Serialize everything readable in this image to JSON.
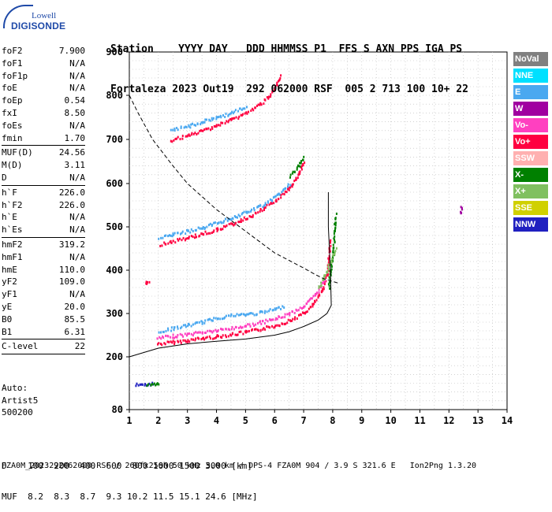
{
  "header": {
    "line1": "Station    YYYY DAY   DDD HHMMSS P1  FFS S AXN PPS IGA PS",
    "line2": "Fortaleza 2023 Out19  292 062000 RSF  005 2 713 100 10+ 22"
  },
  "logo": {
    "line1": "Lowell",
    "line2": "DIGISONDE"
  },
  "params": {
    "group1": [
      {
        "name": "foF2",
        "value": "7.900"
      },
      {
        "name": "foF1",
        "value": "N/A"
      },
      {
        "name": "foF1p",
        "value": "N/A"
      },
      {
        "name": "foE",
        "value": "N/A"
      },
      {
        "name": "foEp",
        "value": "0.54"
      },
      {
        "name": "fxI",
        "value": "8.50"
      },
      {
        "name": "foEs",
        "value": "N/A"
      },
      {
        "name": "fmin",
        "value": "1.70"
      }
    ],
    "group2": [
      {
        "name": "MUF(D)",
        "value": "24.56"
      },
      {
        "name": "M(D)",
        "value": "3.11"
      },
      {
        "name": "D",
        "value": "N/A"
      }
    ],
    "group3": [
      {
        "name": "h`F",
        "value": "226.0"
      },
      {
        "name": "h`F2",
        "value": "226.0"
      },
      {
        "name": "h`E",
        "value": "N/A"
      },
      {
        "name": "h`Es",
        "value": "N/A"
      }
    ],
    "group4": [
      {
        "name": "hmF2",
        "value": "319.2"
      },
      {
        "name": "hmF1",
        "value": "N/A"
      },
      {
        "name": "hmE",
        "value": "110.0"
      },
      {
        "name": "yF2",
        "value": "109.0"
      },
      {
        "name": "yF1",
        "value": "N/A"
      },
      {
        "name": "yE",
        "value": "20.0"
      },
      {
        "name": "B0",
        "value": "85.5"
      },
      {
        "name": "B1",
        "value": "6.31"
      }
    ],
    "group5": [
      {
        "name": "C-level",
        "value": "22"
      }
    ]
  },
  "auto": {
    "line1": "Auto:",
    "line2": "Artist5",
    "line3": "500200"
  },
  "bottom": {
    "d_line": "D    100  200  400  600  800 1000 1500 3000 [km]",
    "muf_line": "MUF  8.2  8.3  8.7  9.3 10.2 11.5 15.1 24.6 [MHz]",
    "footer": "FZA0M_2023292062000.RSF / 260fx256h 50 kHz 5.0 km / DPS-4 FZA0M 904 / 3.9 S 321.6 E   Ion2Png 1.3.20"
  },
  "legend": [
    {
      "label": "NoVal",
      "color": "#808080"
    },
    {
      "label": "NNE",
      "color": "#00e0ff"
    },
    {
      "label": "E",
      "color": "#4aa8f0"
    },
    {
      "label": "W",
      "color": "#a000a0"
    },
    {
      "label": "Vo-",
      "color": "#ff40c0"
    },
    {
      "label": "Vo+",
      "color": "#ff0040"
    },
    {
      "label": "SSW",
      "color": "#ffb0b0"
    },
    {
      "label": "X-",
      "color": "#008000"
    },
    {
      "label": "X+",
      "color": "#80c060"
    },
    {
      "label": "SSE",
      "color": "#d0d000"
    },
    {
      "label": "NNW",
      "color": "#2020c0"
    }
  ],
  "chart_data": {
    "type": "scatter",
    "xlim": [
      1,
      14
    ],
    "ylim": [
      80,
      900
    ],
    "x_ticks": [
      "1",
      "2",
      "3",
      "4",
      "5",
      "6",
      "7",
      "8",
      "9",
      "10",
      "11",
      "12",
      "13",
      "14"
    ],
    "y_ticks": [
      "80",
      "200",
      "300",
      "400",
      "500",
      "600",
      "700",
      "800",
      "900"
    ],
    "grid": true,
    "legend_position": "right",
    "series": [
      {
        "type": "echo-trace",
        "color": "#ff0040",
        "points": [
          [
            1.95,
            232
          ],
          [
            2.5,
            236
          ],
          [
            3,
            240
          ],
          [
            3.5,
            245
          ],
          [
            4,
            249
          ],
          [
            4.5,
            254
          ],
          [
            5,
            259
          ],
          [
            5.5,
            266
          ],
          [
            6,
            274
          ],
          [
            6.5,
            286
          ],
          [
            7,
            303
          ],
          [
            7.3,
            322
          ],
          [
            7.6,
            352
          ],
          [
            7.8,
            395
          ],
          [
            7.9,
            470
          ]
        ]
      },
      {
        "type": "echo-trace",
        "color": "#ff40c0",
        "points": [
          [
            1.95,
            245
          ],
          [
            2.5,
            250
          ],
          [
            3,
            254
          ],
          [
            3.5,
            259
          ],
          [
            4,
            263
          ],
          [
            4.5,
            268
          ],
          [
            5,
            274
          ],
          [
            5.5,
            281
          ],
          [
            6,
            290
          ],
          [
            6.5,
            302
          ],
          [
            7,
            320
          ],
          [
            7.4,
            345
          ],
          [
            7.7,
            380
          ]
        ]
      },
      {
        "type": "echo-trace",
        "color": "#4aa8f0",
        "points": [
          [
            2.0,
            260
          ],
          [
            2.5,
            268
          ],
          [
            3,
            275
          ],
          [
            3.5,
            282
          ],
          [
            4,
            292
          ],
          [
            4.5,
            298
          ],
          [
            5,
            300
          ],
          [
            5.5,
            304
          ],
          [
            6,
            312
          ],
          [
            6.3,
            318
          ]
        ]
      },
      {
        "type": "echo-trace",
        "color": "#ff0040",
        "points": [
          [
            2.05,
            462
          ],
          [
            2.5,
            469
          ],
          [
            3,
            477
          ],
          [
            3.5,
            486
          ],
          [
            4,
            496
          ],
          [
            4.5,
            508
          ],
          [
            5,
            522
          ],
          [
            5.5,
            540
          ],
          [
            6,
            562
          ],
          [
            6.5,
            592
          ],
          [
            6.8,
            620
          ],
          [
            7,
            650
          ]
        ]
      },
      {
        "type": "echo-trace",
        "color": "#4aa8f0",
        "points": [
          [
            2.0,
            478
          ],
          [
            2.5,
            484
          ],
          [
            3,
            492
          ],
          [
            3.5,
            500
          ],
          [
            4,
            512
          ],
          [
            4.5,
            522
          ],
          [
            5,
            535
          ],
          [
            5.5,
            550
          ],
          [
            6,
            570
          ],
          [
            6.5,
            600
          ]
        ]
      },
      {
        "type": "echo-trace",
        "color": "#ff0040",
        "points": [
          [
            2.4,
            700
          ],
          [
            3,
            710
          ],
          [
            3.5,
            722
          ],
          [
            4,
            734
          ],
          [
            4.5,
            747
          ],
          [
            5,
            762
          ],
          [
            5.5,
            782
          ],
          [
            5.8,
            800
          ],
          [
            6,
            820
          ],
          [
            6.2,
            845
          ]
        ]
      },
      {
        "type": "echo-trace",
        "color": "#4aa8f0",
        "points": [
          [
            2.4,
            722
          ],
          [
            3,
            732
          ],
          [
            3.5,
            742
          ],
          [
            4,
            752
          ],
          [
            4.5,
            762
          ],
          [
            5,
            776
          ]
        ]
      },
      {
        "type": "echo-trace",
        "color": "#008000",
        "points": [
          [
            7.85,
            360
          ],
          [
            7.9,
            400
          ],
          [
            8.0,
            440
          ],
          [
            8.05,
            500
          ],
          [
            8.1,
            530
          ]
        ]
      },
      {
        "type": "echo-trace",
        "color": "#80c060",
        "points": [
          [
            7.5,
            360
          ],
          [
            7.7,
            390
          ],
          [
            7.9,
            420
          ],
          [
            8.1,
            450
          ]
        ]
      },
      {
        "type": "echo-trace",
        "color": "#008000",
        "points": [
          [
            6.5,
            620
          ],
          [
            6.8,
            640
          ],
          [
            7.0,
            660
          ]
        ]
      },
      {
        "type": "echo-trace",
        "color": "#2020c0",
        "points": [
          [
            1.2,
            140
          ],
          [
            1.5,
            140
          ],
          [
            1.8,
            140
          ]
        ]
      },
      {
        "type": "echo-trace",
        "color": "#008000",
        "points": [
          [
            1.6,
            140
          ],
          [
            1.9,
            140
          ],
          [
            2.0,
            140
          ]
        ]
      },
      {
        "type": "echo-trace",
        "color": "#ff0040",
        "points": [
          [
            1.55,
            372
          ],
          [
            1.65,
            372
          ]
        ]
      },
      {
        "type": "echo-trace",
        "color": "#a000a0",
        "points": [
          [
            12.4,
            535
          ],
          [
            12.4,
            548
          ]
        ]
      }
    ],
    "profile": {
      "type": "line",
      "color": "#000000",
      "points": [
        [
          1.0,
          200
        ],
        [
          2,
          220
        ],
        [
          3,
          230
        ],
        [
          4,
          236
        ],
        [
          5,
          241
        ],
        [
          6,
          250
        ],
        [
          6.5,
          258
        ],
        [
          7,
          270
        ],
        [
          7.5,
          285
        ],
        [
          7.8,
          300
        ],
        [
          7.95,
          319
        ],
        [
          7.92,
          400
        ],
        [
          7.85,
          500
        ],
        [
          7.85,
          580
        ]
      ]
    },
    "muf_curve": {
      "type": "dashed",
      "color": "#000000",
      "points": [
        [
          1.0,
          800
        ],
        [
          1.3,
          760
        ],
        [
          1.8,
          700
        ],
        [
          2.5,
          640
        ],
        [
          3,
          600
        ],
        [
          3.5,
          570
        ],
        [
          4,
          540
        ],
        [
          5,
          490
        ],
        [
          6,
          440
        ],
        [
          7,
          405
        ],
        [
          7.4,
          390
        ],
        [
          7.7,
          380
        ],
        [
          8.2,
          370
        ]
      ]
    }
  }
}
